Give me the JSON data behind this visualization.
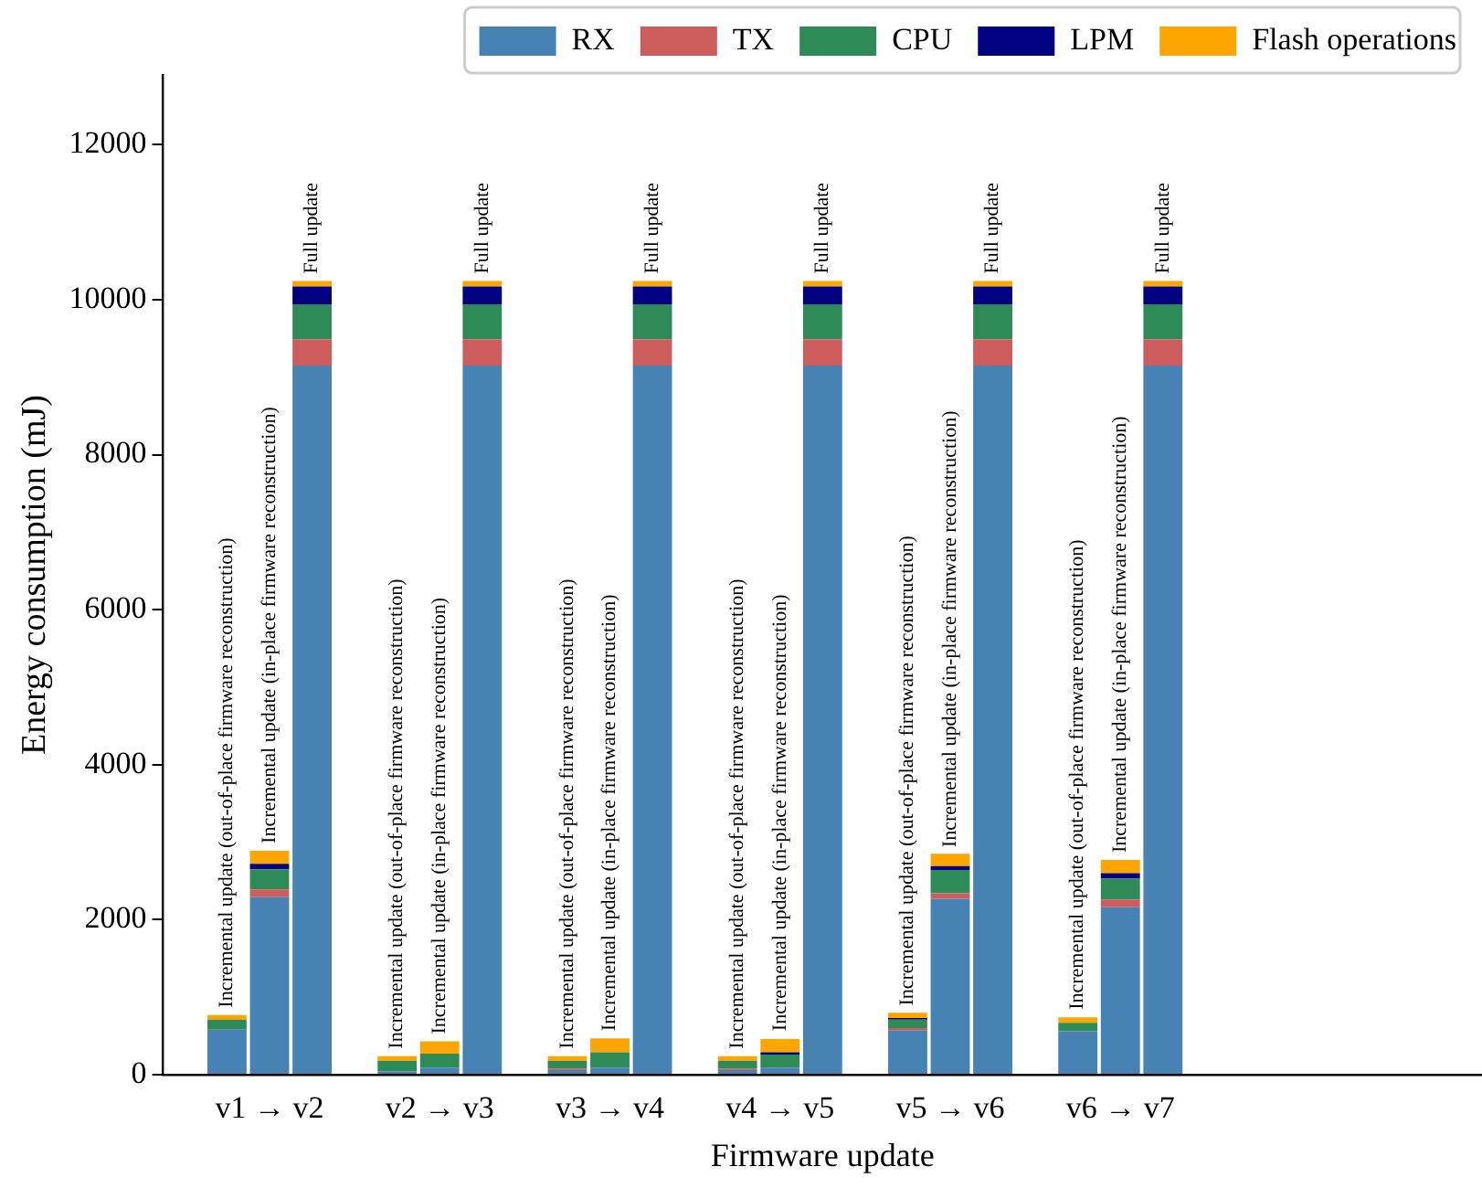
{
  "chart_data": {
    "type": "bar",
    "stacked": true,
    "xlabel": "Firmware update",
    "ylabel": "Energy consumption (mJ)",
    "categories": [
      null,
      null,
      "v1 → v2",
      null,
      null,
      null,
      "v2 → v3",
      null,
      null,
      null,
      "v3 → v4",
      null,
      null,
      null,
      "v4 → v5",
      null,
      null,
      null,
      "v5 → v6",
      null,
      null,
      null,
      "v6 → v7",
      null,
      null,
      null,
      null,
      null,
      null,
      null,
      null
    ],
    "series": [
      {
        "name": "RX",
        "color": "#4682b4",
        "values": [
          null,
          580,
          2290,
          9150,
          null,
          40,
          90,
          9150,
          null,
          60,
          90,
          9150,
          null,
          60,
          90,
          9150,
          null,
          570,
          2270,
          9150,
          null,
          560,
          2160,
          9150,
          null,
          null,
          null,
          null,
          null,
          null,
          null
        ]
      },
      {
        "name": "TX",
        "color": "#cd5c5c",
        "values": [
          null,
          0,
          100,
          340,
          null,
          0,
          0,
          340,
          null,
          20,
          0,
          340,
          null,
          20,
          0,
          340,
          null,
          30,
          70,
          340,
          null,
          0,
          100,
          340,
          null,
          null,
          null,
          null,
          null,
          null,
          null
        ]
      },
      {
        "name": "CPU",
        "color": "#2e8b57",
        "values": [
          null,
          130,
          260,
          450,
          null,
          140,
          180,
          450,
          null,
          100,
          200,
          450,
          null,
          100,
          170,
          450,
          null,
          110,
          300,
          450,
          null,
          110,
          270,
          450,
          null,
          null,
          null,
          null,
          null,
          null,
          null
        ]
      },
      {
        "name": "LPM",
        "color": "#000080",
        "values": [
          null,
          0,
          70,
          230,
          null,
          0,
          0,
          230,
          null,
          0,
          0,
          230,
          null,
          0,
          30,
          230,
          null,
          20,
          50,
          230,
          null,
          0,
          70,
          230,
          null,
          null,
          null,
          null,
          null,
          null,
          null
        ]
      },
      {
        "name": "Flash operations",
        "color": "#ffa500",
        "values": [
          null,
          60,
          170,
          70,
          null,
          60,
          160,
          70,
          null,
          60,
          180,
          70,
          null,
          60,
          170,
          70,
          null,
          70,
          160,
          70,
          null,
          70,
          170,
          70,
          null,
          null,
          null,
          null,
          null,
          null,
          null
        ]
      }
    ],
    "ylim": [
      0,
      12900
    ],
    "yticks": [
      0,
      2000,
      4000,
      6000,
      8000,
      10000,
      12000
    ],
    "grid": false,
    "legend": "top",
    "annotations": [
      {
        "text": "Incremental update (out-of-place firmware reconstruction)",
        "y": 770
      },
      {
        "text": "Incremental update (in-place firmware reconstruction)",
        "y": 2890
      },
      {
        "text": "Full update",
        "y": 10240
      },
      {
        "text": "Incremental update (out-of-place firmware reconstruction)",
        "y": 240
      },
      {
        "text": "Incremental update (in-place firmware reconstruction)",
        "y": 430
      },
      {
        "text": "Full update",
        "y": 10240
      },
      {
        "text": "Incremental update (out-of-place firmware reconstruction)",
        "y": 240
      },
      {
        "text": "Incremental update (in-place firmware reconstruction)",
        "y": 470
      },
      {
        "text": "Full update",
        "y": 10240
      },
      {
        "text": "Incremental update (out-of-place firmware reconstruction)",
        "y": 240
      },
      {
        "text": "Incremental update (in-place firmware reconstruction)",
        "y": 470
      },
      {
        "text": "Full update",
        "y": 10240
      },
      {
        "text": "Incremental update (out-of-place firmware reconstruction)",
        "y": 795
      },
      {
        "text": "Incremental update (in-place firmware reconstruction)",
        "y": 2840
      },
      {
        "text": "Full update",
        "y": 10240
      },
      {
        "text": "Incremental update (out-of-place firmware reconstruction)",
        "y": 745
      },
      {
        "text": "Incremental update (in-place firmware reconstruction)",
        "y": 2770
      },
      {
        "text": "Full update",
        "y": 10240
      }
    ]
  }
}
